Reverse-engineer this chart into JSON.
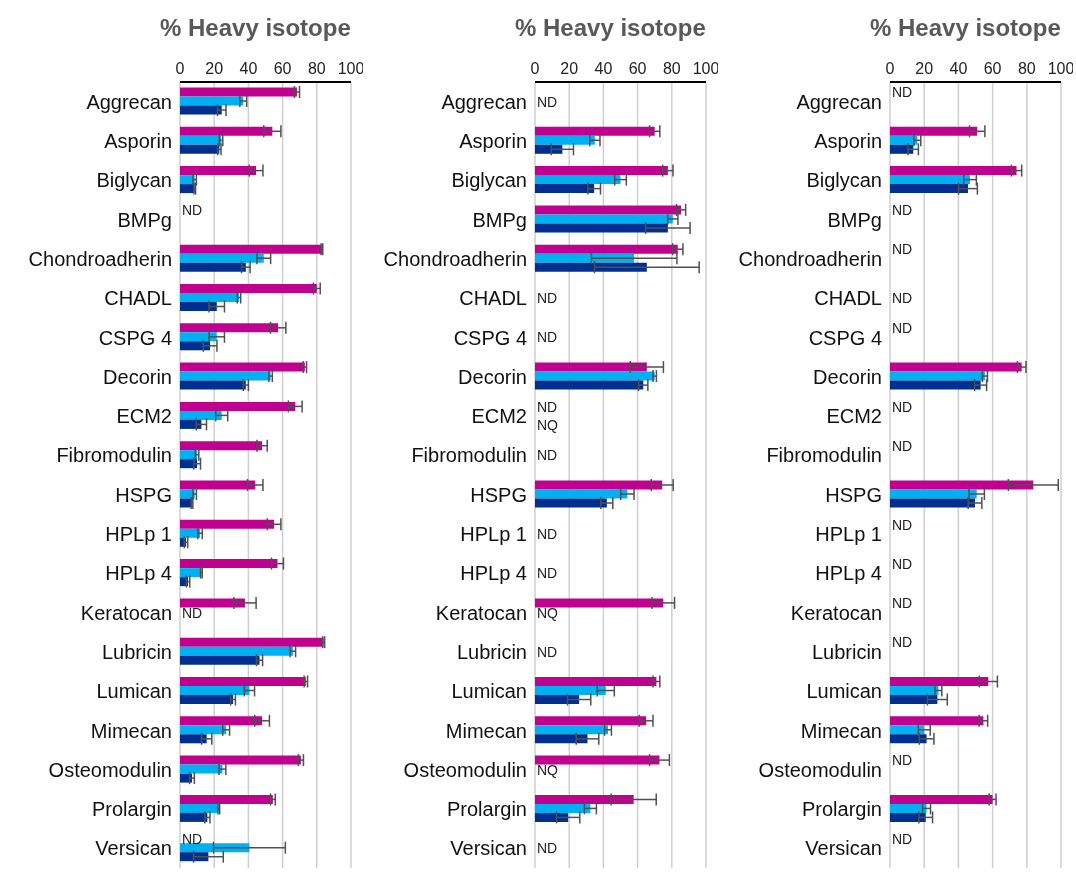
{
  "chart_data": [
    {
      "type": "bar",
      "orientation": "horizontal",
      "title": "% Heavy isotope",
      "categories": [
        "Aggrecan",
        "Asporin",
        "Biglycan",
        "BMPg",
        "Chondroadherin",
        "CHADL",
        "CSPG 4",
        "Decorin",
        "ECM2",
        "Fibromodulin",
        "HSPG",
        "HPLp 1",
        "HPLp 4",
        "Keratocan",
        "Lubricin",
        "Lumican",
        "Mimecan",
        "Osteomodulin",
        "Prolargin",
        "Versican"
      ],
      "series": [
        {
          "color": "#c0008f",
          "values": [
            68.4,
            54,
            44.5,
            null,
            83,
            80,
            57.4,
            73,
            67.4,
            48,
            44,
            55,
            57,
            38,
            84,
            73.6,
            48,
            70.7,
            54.3,
            null
          ],
          "errors": [
            1.5,
            5,
            4,
            null,
            0.5,
            2,
            4.5,
            1,
            4,
            3,
            4.5,
            4,
            3.5,
            6.5,
            0.6,
            1,
            4.3,
            1.5,
            1.4,
            null
          ],
          "value_labels": [
            null,
            null,
            null,
            "ND",
            null,
            null,
            null,
            null,
            null,
            null,
            null,
            null,
            null,
            null,
            null,
            null,
            null,
            null,
            null,
            "ND"
          ]
        },
        {
          "color": "#00b0f0",
          "values": [
            37,
            24,
            8.6,
            null,
            49,
            34.5,
            21.5,
            53,
            24.4,
            10,
            8.6,
            11.7,
            12.5,
            null,
            66,
            40.6,
            27,
            24.8,
            22.7,
            40.6
          ],
          "errors": [
            2,
            1,
            1,
            null,
            4,
            1,
            4.5,
            1,
            3.5,
            1,
            1,
            1.3,
            0.5,
            null,
            1.6,
            3,
            2,
            2,
            0.5,
            21
          ],
          "value_labels": [
            null,
            null,
            null,
            null,
            null,
            null,
            null,
            null,
            null,
            null,
            null,
            null,
            null,
            "ND",
            null,
            null,
            null,
            null,
            null,
            null
          ]
        },
        {
          "color": "#002f8f",
          "values": [
            24.4,
            23,
            8.6,
            null,
            38.5,
            21.5,
            17.6,
            38.5,
            12.5,
            10,
            7,
            3.5,
            4.7,
            null,
            46.5,
            31,
            15.6,
            7,
            16,
            16.6
          ],
          "errors": [
            2.5,
            1,
            0.5,
            null,
            2.5,
            4.5,
            4,
            1.5,
            3,
            2,
            0.5,
            1,
            1,
            null,
            1.8,
            1.4,
            3,
            1.4,
            1.5,
            8.7
          ]
        }
      ],
      "xlim": [
        0,
        100
      ],
      "xticks": [
        0,
        20,
        40,
        60,
        80,
        100
      ],
      "grid": "x"
    },
    {
      "type": "bar",
      "orientation": "horizontal",
      "title": "% Heavy isotope",
      "categories": [
        "Aggrecan",
        "Asporin",
        "Biglycan",
        "BMPg",
        "Chondroadherin",
        "CHADL",
        "CSPG 4",
        "Decorin",
        "ECM2",
        "Fibromodulin",
        "HSPG",
        "HPLp 1",
        "HPLp 4",
        "Keratocan",
        "Lubricin",
        "Lumican",
        "Mimecan",
        "Osteomodulin",
        "Prolargin",
        "Versican"
      ],
      "series": [
        {
          "color": "#c0008f",
          "values": [
            null,
            70,
            77.7,
            85.4,
            83.5,
            null,
            null,
            65.4,
            null,
            null,
            74.4,
            null,
            null,
            75,
            null,
            71,
            65,
            72.8,
            57.7,
            null
          ],
          "errors": [
            null,
            3,
            3,
            2.7,
            3,
            null,
            null,
            9.7,
            null,
            null,
            6.4,
            null,
            null,
            6.6,
            null,
            2,
            4,
            5.8,
            13.2,
            null
          ],
          "value_labels": [
            null,
            null,
            null,
            null,
            null,
            null,
            null,
            null,
            "ND",
            null,
            null,
            null,
            null,
            null,
            null,
            null,
            null,
            null,
            null,
            null
          ]
        },
        {
          "color": "#00b0f0",
          "values": [
            null,
            35,
            50,
            80.6,
            58,
            null,
            null,
            70,
            null,
            null,
            54,
            null,
            null,
            null,
            null,
            41.4,
            42.7,
            null,
            32.4,
            null
          ],
          "errors": [
            null,
            3,
            3.4,
            3,
            25,
            null,
            null,
            1,
            null,
            null,
            3.9,
            null,
            null,
            null,
            null,
            5,
            2,
            null,
            3.5,
            null
          ],
          "value_labels": [
            "ND",
            null,
            null,
            null,
            null,
            "ND",
            "ND",
            null,
            null,
            "ND",
            null,
            "ND",
            "ND",
            "NQ",
            "ND",
            null,
            null,
            "NQ",
            null,
            "ND"
          ]
        },
        {
          "color": "#002f8f",
          "values": [
            null,
            16,
            34.6,
            77.7,
            65.4,
            null,
            null,
            63.3,
            null,
            null,
            42,
            null,
            null,
            null,
            null,
            25.8,
            30.7,
            null,
            19.4,
            null
          ],
          "errors": [
            null,
            6.5,
            3.7,
            13,
            30.6,
            null,
            null,
            2.7,
            null,
            null,
            3.5,
            null,
            null,
            null,
            null,
            6.8,
            6.6,
            null,
            6.8,
            null
          ],
          "value_labels": [
            null,
            null,
            null,
            null,
            null,
            null,
            null,
            null,
            "NQ",
            null,
            null,
            null,
            null,
            null,
            null,
            null,
            null,
            null,
            null,
            null
          ]
        }
      ],
      "xlim": [
        0,
        100
      ],
      "xticks": [
        0,
        20,
        40,
        60,
        80,
        100
      ],
      "grid": "x"
    },
    {
      "type": "bar",
      "orientation": "horizontal",
      "title": "% Heavy isotope",
      "categories": [
        "Aggrecan",
        "Asporin",
        "Biglycan",
        "BMPg",
        "Chondroadherin",
        "CHADL",
        "CSPG 4",
        "Decorin",
        "ECM2",
        "Fibromodulin",
        "HSPG",
        "HPLp 1",
        "HPLp 4",
        "Keratocan",
        "Lubricin",
        "Lumican",
        "Mimecan",
        "Osteomodulin",
        "Prolargin",
        "Versican"
      ],
      "series": [
        {
          "color": "#c0008f",
          "values": [
            null,
            51,
            74,
            null,
            null,
            null,
            null,
            77,
            null,
            null,
            83.8,
            null,
            null,
            null,
            null,
            57.5,
            54.6,
            null,
            60,
            null
          ],
          "errors": [
            null,
            4.5,
            3,
            null,
            null,
            null,
            null,
            2.5,
            null,
            null,
            14.6,
            null,
            null,
            null,
            null,
            5.3,
            2.5,
            null,
            2,
            null
          ],
          "value_labels": [
            "ND",
            null,
            null,
            "ND",
            "ND",
            null,
            "ND",
            null,
            "ND",
            "ND",
            null,
            "ND",
            "ND",
            "ND",
            "ND",
            null,
            null,
            "ND",
            null,
            "ND"
          ]
        },
        {
          "color": "#00b0f0",
          "values": [
            null,
            16,
            46.8,
            null,
            null,
            null,
            null,
            55.5,
            null,
            null,
            50.7,
            null,
            null,
            null,
            null,
            28.3,
            20,
            null,
            21.4,
            null
          ],
          "errors": [
            null,
            2,
            3.7,
            null,
            null,
            null,
            null,
            1.5,
            null,
            null,
            4.5,
            null,
            null,
            null,
            null,
            2,
            3.5,
            null,
            2.3,
            null
          ],
          "value_labels": [
            null,
            null,
            null,
            null,
            null,
            "ND",
            null,
            null,
            null,
            null,
            null,
            null,
            null,
            null,
            null,
            null,
            null,
            null,
            null,
            null
          ]
        },
        {
          "color": "#002f8f",
          "values": [
            null,
            13.6,
            45.6,
            null,
            null,
            null,
            null,
            53,
            null,
            null,
            49.7,
            null,
            null,
            null,
            null,
            27.7,
            21.4,
            null,
            20.9,
            null
          ],
          "errors": [
            null,
            3,
            5.5,
            null,
            null,
            null,
            null,
            3.5,
            null,
            null,
            4,
            null,
            null,
            null,
            null,
            5.8,
            4.3,
            null,
            4,
            null
          ]
        }
      ],
      "xlim": [
        0,
        100
      ],
      "xticks": [
        0,
        20,
        40,
        60,
        80,
        100
      ],
      "grid": "x"
    }
  ]
}
